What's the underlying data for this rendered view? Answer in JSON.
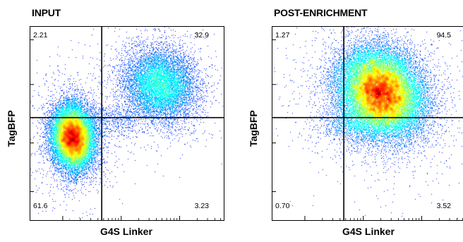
{
  "chart_data": [
    {
      "type": "scatter",
      "title": "INPUT",
      "xlabel": "G4S Linker",
      "ylabel": "TagBFP",
      "axis_scale": "log",
      "grid": false,
      "gates": {
        "x": 0.37,
        "y": 0.53
      },
      "quadrants": {
        "upper_left": "2.21",
        "upper_right": "32.9",
        "lower_left": "61.6",
        "lower_right": "3.23"
      },
      "populations": [
        {
          "cx": 0.22,
          "cy": 0.43,
          "sx": 0.055,
          "sy": 0.085,
          "weight": 0.64,
          "rot": 0.1
        },
        {
          "cx": 0.67,
          "cy": 0.7,
          "sx": 0.09,
          "sy": 0.1,
          "weight": 0.33,
          "rot": 0.75
        },
        {
          "cx": 0.42,
          "cy": 0.52,
          "sx": 0.13,
          "sy": 0.045,
          "weight": 0.03,
          "rot": 0.2
        }
      ]
    },
    {
      "type": "scatter",
      "title": "POST-ENRICHMENT",
      "xlabel": "G4S Linker",
      "ylabel": "TagBFP",
      "axis_scale": "log",
      "grid": false,
      "gates": {
        "x": 0.37,
        "y": 0.53
      },
      "quadrants": {
        "upper_left": "1.27",
        "upper_right": "94.5",
        "lower_left": "0.70",
        "lower_right": "3.52"
      },
      "populations": [
        {
          "cx": 0.56,
          "cy": 0.66,
          "sx": 0.1,
          "sy": 0.12,
          "weight": 0.96,
          "rot": 0.7
        },
        {
          "cx": 0.42,
          "cy": 0.51,
          "sx": 0.09,
          "sy": 0.05,
          "weight": 0.04,
          "rot": 0.1
        }
      ]
    }
  ]
}
